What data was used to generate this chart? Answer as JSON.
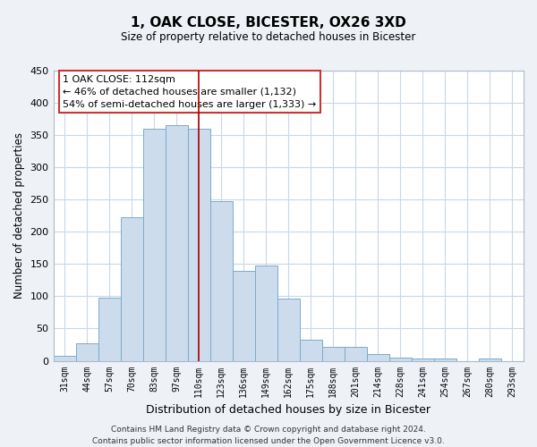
{
  "title": "1, OAK CLOSE, BICESTER, OX26 3XD",
  "subtitle": "Size of property relative to detached houses in Bicester",
  "xlabel": "Distribution of detached houses by size in Bicester",
  "ylabel": "Number of detached properties",
  "bar_color": "#ccdcec",
  "bar_edge_color": "#7aabcc",
  "marker_line_color": "#aa0000",
  "categories": [
    "31sqm",
    "44sqm",
    "57sqm",
    "70sqm",
    "83sqm",
    "97sqm",
    "110sqm",
    "123sqm",
    "136sqm",
    "149sqm",
    "162sqm",
    "175sqm",
    "188sqm",
    "201sqm",
    "214sqm",
    "228sqm",
    "241sqm",
    "254sqm",
    "267sqm",
    "280sqm",
    "293sqm"
  ],
  "values": [
    8,
    27,
    98,
    222,
    360,
    365,
    360,
    248,
    140,
    148,
    97,
    32,
    22,
    22,
    10,
    5,
    3,
    3,
    0,
    3,
    0
  ],
  "ylim": [
    0,
    450
  ],
  "yticks": [
    0,
    50,
    100,
    150,
    200,
    250,
    300,
    350,
    400,
    450
  ],
  "annotation_title": "1 OAK CLOSE: 112sqm",
  "annotation_line1": "← 46% of detached houses are smaller (1,132)",
  "annotation_line2": "54% of semi-detached houses are larger (1,333) →",
  "footer_line1": "Contains HM Land Registry data © Crown copyright and database right 2024.",
  "footer_line2": "Contains public sector information licensed under the Open Government Licence v3.0.",
  "background_color": "#eef2f7",
  "plot_bg_color": "#ffffff",
  "grid_color": "#c8d8e8"
}
